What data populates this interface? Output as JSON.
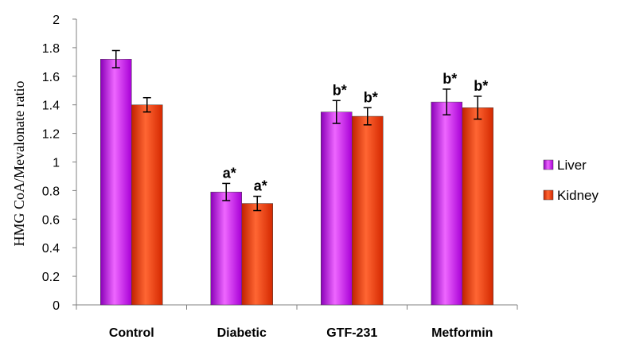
{
  "chart_data": {
    "type": "bar",
    "title": "",
    "xlabel": "",
    "ylabel": "HMG CoA/Mevalonate ratio",
    "ylim": [
      0,
      2
    ],
    "yticks": [
      "0",
      "0.2",
      "0.4",
      "0.6",
      "0.8",
      "1",
      "1.2",
      "1.4",
      "1.6",
      "1.8",
      "2"
    ],
    "categories": [
      "Control",
      "Diabetic",
      "GTF-231",
      "Metformin"
    ],
    "series": [
      {
        "name": "Liver",
        "color": "#CC00FF",
        "values": [
          1.72,
          0.79,
          1.35,
          1.42
        ],
        "errors": [
          0.06,
          0.06,
          0.08,
          0.09
        ],
        "annotations": [
          "",
          "a*",
          "b*",
          "b*"
        ]
      },
      {
        "name": "Kidney",
        "color": "#FF3300",
        "values": [
          1.4,
          0.71,
          1.32,
          1.38
        ],
        "errors": [
          0.05,
          0.05,
          0.06,
          0.08
        ],
        "annotations": [
          "",
          "a*",
          "b*",
          "b*"
        ]
      }
    ],
    "grid": false,
    "legend": "right"
  }
}
